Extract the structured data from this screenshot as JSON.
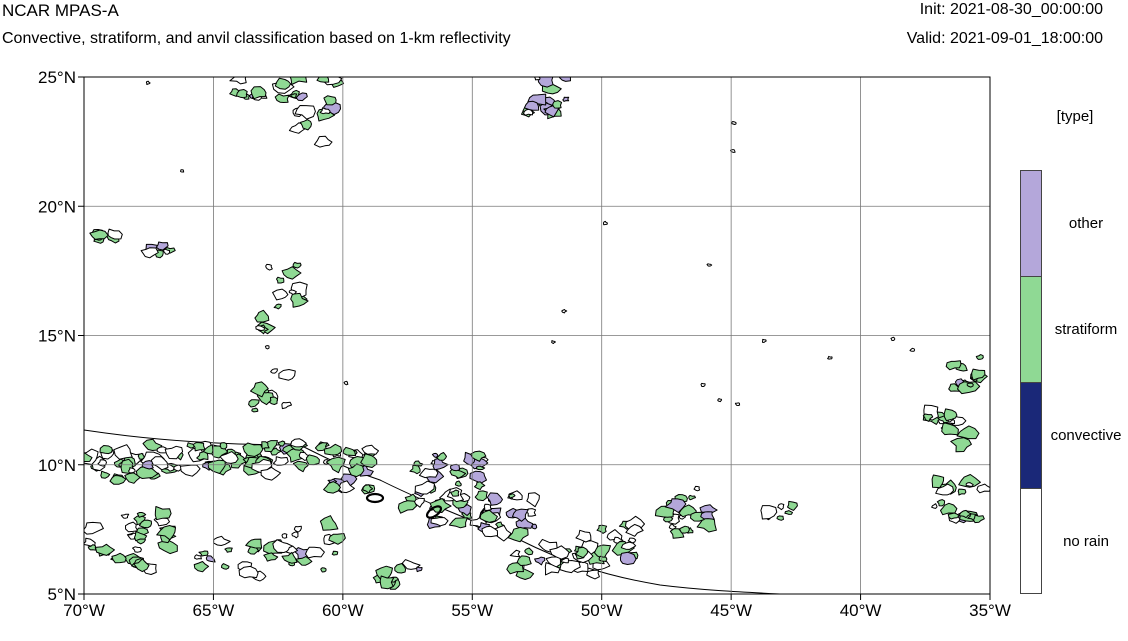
{
  "header": {
    "title": "NCAR MPAS-A",
    "subtitle": "Convective, stratiform, and anvil classification based on 1-km reflectivity",
    "init": "Init: 2021-08-30_00:00:00",
    "valid": "Valid: 2021-09-01_18:00:00"
  },
  "map": {
    "lon_range": [
      -70,
      -35
    ],
    "lat_range": [
      5,
      25
    ],
    "lat_ticks": [
      {
        "value": 25,
        "label": "25°N"
      },
      {
        "value": 20,
        "label": "20°N"
      },
      {
        "value": 15,
        "label": "15°N"
      },
      {
        "value": 10,
        "label": "10°N"
      },
      {
        "value": 5,
        "label": "5°N"
      }
    ],
    "lon_ticks": [
      {
        "value": -70,
        "label": "70°W"
      },
      {
        "value": -65,
        "label": "65°W"
      },
      {
        "value": -60,
        "label": "60°W"
      },
      {
        "value": -55,
        "label": "55°W"
      },
      {
        "value": -50,
        "label": "50°W"
      },
      {
        "value": -45,
        "label": "45°W"
      },
      {
        "value": -40,
        "label": "40°W"
      },
      {
        "value": -35,
        "label": "35°W"
      }
    ],
    "grid": true
  },
  "legend": {
    "title": "[type]",
    "items": [
      {
        "label": "other",
        "color": "#b4a7da"
      },
      {
        "label": "stratiform",
        "color": "#8fd994"
      },
      {
        "label": "convective",
        "color": "#1a2878"
      },
      {
        "label": "no rain",
        "color": "#ffffff"
      }
    ]
  }
}
